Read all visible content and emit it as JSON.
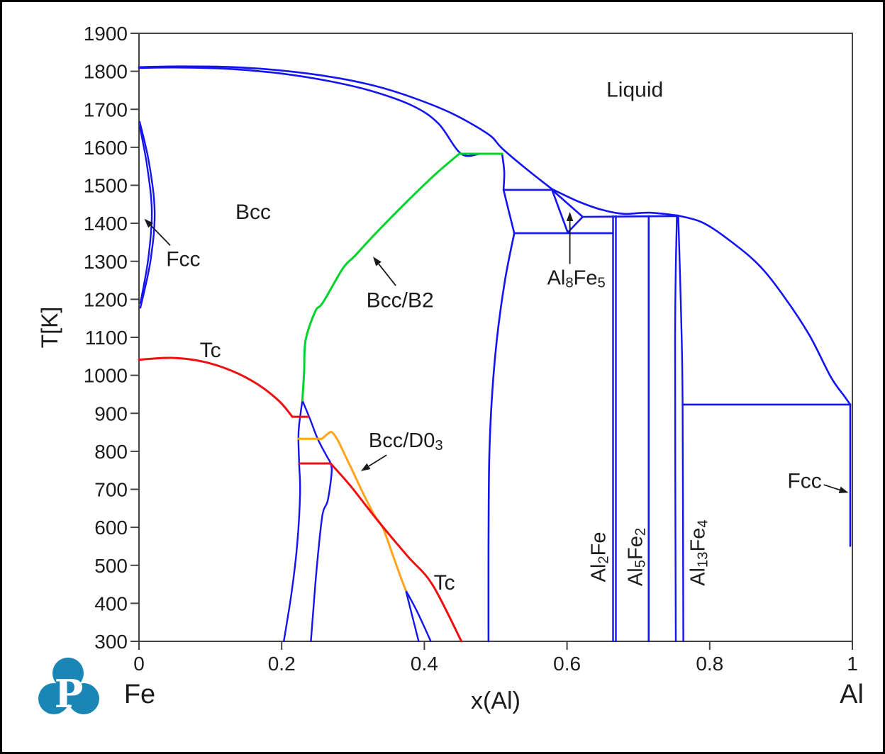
{
  "watermark": {
    "letter": "P",
    "color": "#1b86b6"
  },
  "chart_data": {
    "type": "line",
    "kind": "binary-phase-diagram",
    "system": {
      "left": "Fe",
      "right": "Al"
    },
    "xlabel": "x(Al)",
    "ylabel": "T[K]",
    "xlim": [
      0,
      1
    ],
    "ylim": [
      300,
      1900
    ],
    "xticks": {
      "values": [
        0,
        0.2,
        0.4,
        0.6,
        0.8,
        1
      ],
      "labels": [
        "0",
        "0.2",
        "0.4",
        "0.6",
        "0.8",
        "1"
      ]
    },
    "yticks": [
      300,
      400,
      500,
      600,
      700,
      800,
      900,
      1000,
      1100,
      1200,
      1300,
      1400,
      1500,
      1600,
      1700,
      1800,
      1900
    ],
    "grid": false,
    "legend": "none",
    "colors": {
      "boundary": "#1414f0",
      "order2_b2": "#00d42c",
      "curie": "#ee1010",
      "order2_d03": "#ffa41c",
      "frame": "#444444",
      "annotation": "#1a1a1a"
    },
    "series": [
      {
        "id": "liquidus-left",
        "color": "boundary",
        "w": 2.6,
        "pts": [
          [
            0,
            1811
          ],
          [
            0.06,
            1813
          ],
          [
            0.13,
            1811
          ],
          [
            0.2,
            1802
          ],
          [
            0.27,
            1785
          ],
          [
            0.33,
            1762
          ],
          [
            0.385,
            1730
          ],
          [
            0.44,
            1688
          ],
          [
            0.49,
            1634
          ],
          [
            0.509,
            1597
          ],
          [
            0.545,
            1540
          ],
          [
            0.579,
            1490
          ]
        ]
      },
      {
        "id": "liquidus-mid-plateau",
        "color": "boundary",
        "w": 2.6,
        "pts": [
          [
            0.579,
            1490
          ],
          [
            0.615,
            1458
          ],
          [
            0.648,
            1436
          ],
          [
            0.679,
            1425
          ],
          [
            0.715,
            1428
          ],
          [
            0.754,
            1421
          ]
        ]
      },
      {
        "id": "liquidus-right",
        "color": "boundary",
        "w": 2.6,
        "pts": [
          [
            0.754,
            1421
          ],
          [
            0.79,
            1402
          ],
          [
            0.83,
            1352
          ],
          [
            0.87,
            1288
          ],
          [
            0.905,
            1205
          ],
          [
            0.94,
            1105
          ],
          [
            0.97,
            995
          ],
          [
            0.99,
            942
          ],
          [
            0.997,
            923
          ]
        ]
      },
      {
        "id": "solidus",
        "color": "boundary",
        "w": 2.6,
        "pts": [
          [
            0,
            1809
          ],
          [
            0.06,
            1810
          ],
          [
            0.13,
            1806
          ],
          [
            0.2,
            1794
          ],
          [
            0.27,
            1773
          ],
          [
            0.33,
            1746
          ],
          [
            0.385,
            1708
          ],
          [
            0.42,
            1662
          ],
          [
            0.4516,
            1583
          ],
          [
            0.48,
            1583
          ],
          [
            0.509,
            1583
          ]
        ]
      },
      {
        "id": "solidus-drop",
        "color": "boundary",
        "w": 2.6,
        "pts": [
          [
            0.509,
            1583
          ],
          [
            0.512,
            1535
          ],
          [
            0.511,
            1488
          ]
        ]
      },
      {
        "id": "peritectic-1488",
        "color": "boundary",
        "w": 2.6,
        "pts": [
          [
            0.511,
            1488
          ],
          [
            0.579,
            1488
          ]
        ]
      },
      {
        "id": "b2-solvus-upper-left",
        "color": "boundary",
        "w": 2.6,
        "pts": [
          [
            0.511,
            1488
          ],
          [
            0.518,
            1435
          ],
          [
            0.526,
            1374
          ]
        ]
      },
      {
        "id": "al8fe5-left-boundary",
        "color": "boundary",
        "w": 2.6,
        "pts": [
          [
            0.579,
            1488
          ],
          [
            0.601,
            1376
          ]
        ]
      },
      {
        "id": "al8fe5-right-upper",
        "color": "boundary",
        "w": 2.6,
        "pts": [
          [
            0.579,
            1488
          ],
          [
            0.622,
            1417
          ]
        ]
      },
      {
        "id": "al8fe5-right-lower",
        "color": "boundary",
        "w": 2.6,
        "pts": [
          [
            0.622,
            1417
          ],
          [
            0.601,
            1376
          ]
        ]
      },
      {
        "id": "peritectic-1419",
        "color": "boundary",
        "w": 2.6,
        "pts": [
          [
            0.622,
            1417
          ],
          [
            0.754,
            1419
          ]
        ]
      },
      {
        "id": "eutectoid-1374",
        "color": "boundary",
        "w": 2.6,
        "pts": [
          [
            0.526,
            1374
          ],
          [
            0.6645,
            1374
          ]
        ]
      },
      {
        "id": "b2-right-solvus",
        "color": "boundary",
        "w": 2.6,
        "pts": [
          [
            0.526,
            1374
          ],
          [
            0.513,
            1250
          ],
          [
            0.502,
            1100
          ],
          [
            0.495,
            950
          ],
          [
            0.491,
            780
          ],
          [
            0.49,
            550
          ],
          [
            0.49,
            300
          ]
        ]
      },
      {
        "id": "al2fe-left",
        "color": "boundary",
        "w": 2.4,
        "pts": [
          [
            0.6645,
            1419
          ],
          [
            0.6645,
            300
          ]
        ]
      },
      {
        "id": "al2fe-right",
        "color": "boundary",
        "w": 2.4,
        "pts": [
          [
            0.6685,
            1419
          ],
          [
            0.6685,
            300
          ]
        ]
      },
      {
        "id": "al5fe2",
        "color": "boundary",
        "w": 2.6,
        "pts": [
          [
            0.7145,
            1419
          ],
          [
            0.7145,
            300
          ]
        ]
      },
      {
        "id": "al13fe4-left",
        "color": "boundary",
        "w": 2.4,
        "pts": [
          [
            0.754,
            1419
          ],
          [
            0.7515,
            1100
          ],
          [
            0.7525,
            300
          ]
        ]
      },
      {
        "id": "al13fe4-right",
        "color": "boundary",
        "w": 2.4,
        "pts": [
          [
            0.756,
            1419
          ],
          [
            0.76,
            1150
          ],
          [
            0.762,
            923
          ],
          [
            0.763,
            300
          ]
        ]
      },
      {
        "id": "eutectic-923",
        "color": "boundary",
        "w": 2.6,
        "pts": [
          [
            0.762,
            923
          ],
          [
            0.997,
            923
          ]
        ]
      },
      {
        "id": "fcc-al-solvus",
        "color": "boundary",
        "w": 2.6,
        "pts": [
          [
            0.997,
            923
          ],
          [
            0.997,
            551
          ]
        ]
      },
      {
        "id": "gamma-loop-outer",
        "color": "boundary",
        "w": 2.4,
        "pts": [
          [
            0.001,
            1667
          ],
          [
            0.014,
            1560
          ],
          [
            0.022,
            1430
          ],
          [
            0.016,
            1300
          ],
          [
            0.002,
            1178
          ]
        ]
      },
      {
        "id": "gamma-loop-inner",
        "color": "boundary",
        "w": 2.4,
        "pts": [
          [
            0.001,
            1655
          ],
          [
            0.011,
            1555
          ],
          [
            0.018,
            1432
          ],
          [
            0.013,
            1307
          ],
          [
            0.002,
            1190
          ]
        ]
      },
      {
        "id": "alpha-lens-left",
        "color": "boundary",
        "w": 2.4,
        "pts": [
          [
            0.229,
            934
          ],
          [
            0.2245,
            870
          ],
          [
            0.2235,
            833
          ],
          [
            0.2245,
            768
          ],
          [
            0.2258,
            690
          ],
          [
            0.222,
            560
          ],
          [
            0.214,
            430
          ],
          [
            0.203,
            300
          ]
        ]
      },
      {
        "id": "alpha-lens-right",
        "color": "boundary",
        "w": 2.4,
        "pts": [
          [
            0.229,
            934
          ],
          [
            0.24,
            884
          ],
          [
            0.2505,
            833
          ],
          [
            0.263,
            788
          ],
          [
            0.2686,
            768
          ],
          [
            0.27,
            742
          ],
          [
            0.2645,
            670
          ],
          [
            0.257,
            630
          ],
          [
            0.249,
            490
          ],
          [
            0.241,
            300
          ]
        ]
      },
      {
        "id": "d03-lens-left",
        "color": "boundary",
        "w": 2.4,
        "pts": [
          [
            0.374,
            434
          ],
          [
            0.3815,
            378
          ],
          [
            0.392,
            300
          ]
        ]
      },
      {
        "id": "d03-lens-right",
        "color": "boundary",
        "w": 2.4,
        "pts": [
          [
            0.374,
            434
          ],
          [
            0.39,
            378
          ],
          [
            0.409,
            300
          ]
        ]
      },
      {
        "id": "bcc-b2-line",
        "color": "order2_b2",
        "w": 3,
        "pts": [
          [
            0.229,
            934
          ],
          [
            0.2315,
            1010
          ],
          [
            0.2335,
            1092
          ],
          [
            0.247,
            1168
          ],
          [
            0.258,
            1192
          ],
          [
            0.286,
            1282
          ],
          [
            0.303,
            1315
          ],
          [
            0.332,
            1374
          ],
          [
            0.376,
            1458
          ],
          [
            0.416,
            1530
          ],
          [
            0.449,
            1583
          ]
        ]
      },
      {
        "id": "bcc-b2-cap",
        "color": "order2_b2",
        "w": 3,
        "pts": [
          [
            0.449,
            1583
          ],
          [
            0.479,
            1583
          ],
          [
            0.509,
            1583
          ]
        ]
      },
      {
        "id": "d03-tie-833",
        "color": "order2_d03",
        "w": 3,
        "pts": [
          [
            0.2235,
            833
          ],
          [
            0.2567,
            833
          ]
        ]
      },
      {
        "id": "bcc-d03-line",
        "color": "order2_d03",
        "w": 3,
        "pts": [
          [
            0.2567,
            833
          ],
          [
            0.2645,
            846
          ],
          [
            0.2706,
            850
          ],
          [
            0.279,
            828
          ],
          [
            0.288,
            793
          ],
          [
            0.299,
            750
          ],
          [
            0.313,
            694
          ],
          [
            0.33,
            632
          ],
          [
            0.342,
            598
          ],
          [
            0.356,
            526
          ],
          [
            0.367,
            468
          ],
          [
            0.374,
            434
          ]
        ]
      },
      {
        "id": "curie-main",
        "color": "curie",
        "w": 3,
        "pts": [
          [
            0,
            1041
          ],
          [
            0.045,
            1046
          ],
          [
            0.09,
            1036
          ],
          [
            0.13,
            1012
          ],
          [
            0.165,
            978
          ],
          [
            0.196,
            933
          ],
          [
            0.215,
            891
          ]
        ]
      },
      {
        "id": "curie-tie-891",
        "color": "curie",
        "w": 3,
        "pts": [
          [
            0.215,
            891
          ],
          [
            0.2375,
            891
          ]
        ]
      },
      {
        "id": "curie-tie-768",
        "color": "curie",
        "w": 3,
        "pts": [
          [
            0.2255,
            768
          ],
          [
            0.2686,
            768
          ]
        ]
      },
      {
        "id": "curie-lower",
        "color": "curie",
        "w": 3,
        "pts": [
          [
            0.2686,
            768
          ],
          [
            0.296,
            710
          ],
          [
            0.335,
            617
          ],
          [
            0.376,
            525
          ],
          [
            0.411,
            450
          ],
          [
            0.452,
            300
          ]
        ]
      }
    ],
    "labels": [
      {
        "id": "liquid",
        "text": "Liquid",
        "x": 0.695,
        "T": 1752,
        "size": 30
      },
      {
        "id": "bcc",
        "text": "Bcc",
        "x": 0.16,
        "T": 1430,
        "size": 30
      },
      {
        "id": "fcc-fe",
        "text": "Fcc",
        "x": 0.062,
        "T": 1306,
        "size": 30
      },
      {
        "id": "bcc-b2",
        "text": "Bcc/B2",
        "x": 0.366,
        "T": 1198,
        "size": 30
      },
      {
        "id": "al8fe5",
        "text": "Al_8Fe_5",
        "x": 0.613,
        "T": 1256,
        "size": 29
      },
      {
        "id": "bcc-d03",
        "text": "Bcc/D0_3",
        "x": 0.374,
        "T": 828,
        "size": 29
      },
      {
        "id": "tc-upper",
        "text": "Tc",
        "x": 0.1,
        "T": 1066,
        "size": 30
      },
      {
        "id": "tc-lower",
        "text": "Tc",
        "x": 0.428,
        "T": 455,
        "size": 30
      },
      {
        "id": "fcc-al",
        "text": "Fcc",
        "x": 0.933,
        "T": 722,
        "size": 30
      },
      {
        "id": "al2fe",
        "text": "Al_2Fe",
        "x": 0.6445,
        "T": 522,
        "size": 29,
        "rotate": -90
      },
      {
        "id": "al5fe2",
        "text": "Al_5Fe_2",
        "x": 0.6965,
        "T": 522,
        "size": 29,
        "rotate": -90
      },
      {
        "id": "al13fe4",
        "text": "Al_13Fe_4",
        "x": 0.784,
        "T": 533,
        "size": 29,
        "rotate": -90
      }
    ],
    "arrows": [
      {
        "id": "fcc-fe-arrow",
        "from": [
          0.0438,
          1342
        ],
        "to": [
          0.0075,
          1412
        ]
      },
      {
        "id": "bcc-b2-arrow",
        "from": [
          0.36,
          1236
        ],
        "to": [
          0.328,
          1312
        ]
      },
      {
        "id": "al8fe5-arrow",
        "from": [
          0.604,
          1293
        ],
        "to": [
          0.604,
          1430
        ]
      },
      {
        "id": "bcc-d03-arrow",
        "from": [
          0.347,
          790
        ],
        "to": [
          0.311,
          748
        ]
      },
      {
        "id": "fcc-al-arrow",
        "from": [
          0.96,
          712
        ],
        "to": [
          0.9945,
          691
        ]
      }
    ]
  }
}
